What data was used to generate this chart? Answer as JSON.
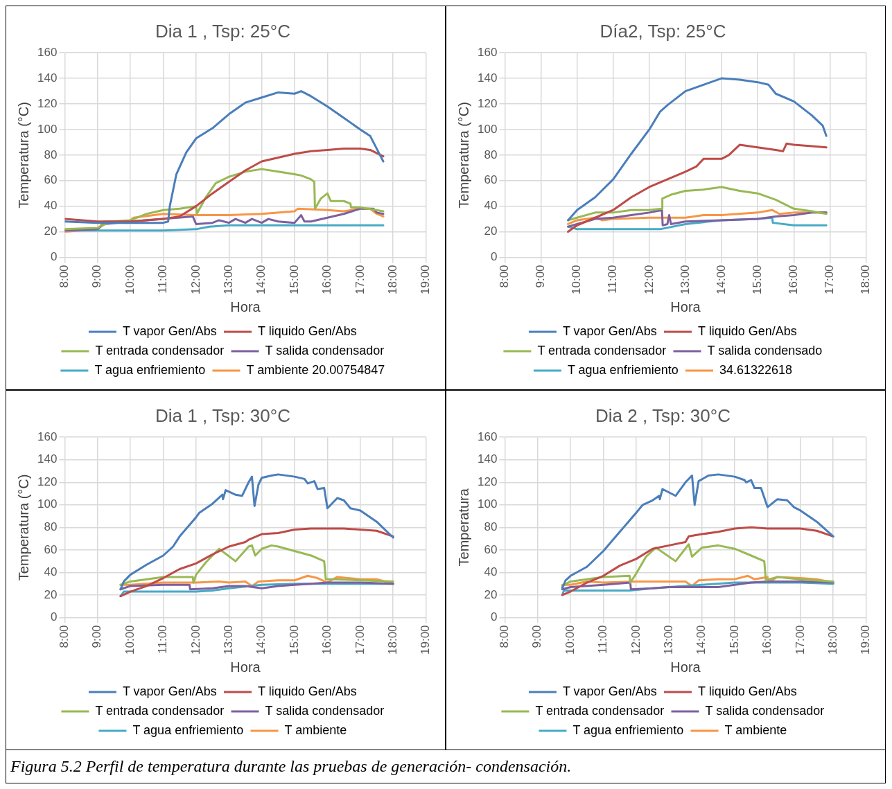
{
  "chart_data": [
    {
      "type": "line",
      "title": "Dia 1 , Tsp: 25°C",
      "xlabel": "Hora",
      "ylabel": "Temperatura (°C)",
      "xlim": [
        8,
        19
      ],
      "xticks": [
        {
          "value": 8,
          "label": "8:00"
        },
        {
          "value": 9,
          "label": "9:00"
        },
        {
          "value": 10,
          "label": "10:00"
        },
        {
          "value": 11,
          "label": "11:00"
        },
        {
          "value": 12,
          "label": "12:00"
        },
        {
          "value": 13,
          "label": "13:00"
        },
        {
          "value": 14,
          "label": "14:00"
        },
        {
          "value": 15,
          "label": "15:00"
        },
        {
          "value": 16,
          "label": "16:00"
        },
        {
          "value": 17,
          "label": "17:00"
        },
        {
          "value": 18,
          "label": "18:00"
        },
        {
          "value": 19,
          "label": "19:00"
        }
      ],
      "ylim": [
        0,
        160
      ],
      "yticks": [
        0,
        20,
        40,
        60,
        80,
        100,
        120,
        140,
        160
      ],
      "grid": true,
      "legend": "bottom",
      "marker": "none",
      "line_style": "solid",
      "series": [
        {
          "name": "T vapor Gen/Abs",
          "color": "#4a7ebb",
          "x": [
            8,
            9,
            10,
            11,
            11.15,
            11.2,
            11.4,
            11.7,
            12,
            12.5,
            13,
            13.5,
            14,
            14.5,
            15,
            15.2,
            15.5,
            16,
            16.5,
            17,
            17.3,
            17.5,
            17.7
          ],
          "values": [
            28,
            27,
            27,
            27,
            28,
            40,
            65,
            82,
            93,
            101,
            112,
            121,
            125,
            129,
            128,
            130,
            126,
            118,
            109,
            100,
            95,
            85,
            75
          ]
        },
        {
          "name": "T liquido Gen/Abs",
          "color": "#be4b48",
          "x": [
            8,
            9,
            10,
            11,
            11.5,
            12,
            12.5,
            13,
            13.5,
            14,
            14.5,
            15,
            15.5,
            16,
            16.5,
            17,
            17.3,
            17.7
          ],
          "values": [
            30,
            28,
            28,
            30,
            32,
            40,
            50,
            59,
            68,
            75,
            78,
            81,
            83,
            84,
            85,
            85,
            84,
            79
          ]
        },
        {
          "name": "T entrada condensador",
          "color": "#98b954",
          "x": [
            8,
            9,
            9.4,
            10,
            10.5,
            11,
            11.5,
            12,
            12.02,
            12.3,
            12.6,
            13,
            13.5,
            14,
            14.5,
            15,
            15.2,
            15.5,
            15.6,
            15.62,
            15.8,
            16,
            16.1,
            16.5,
            16.7,
            16.72,
            17,
            17.7
          ],
          "values": [
            22,
            23,
            28,
            29,
            34,
            37,
            38,
            40,
            34,
            47,
            58,
            63,
            67,
            69,
            67,
            65,
            64,
            61,
            59,
            38,
            46,
            50,
            44,
            44,
            42,
            39,
            39,
            36
          ]
        },
        {
          "name": "T salida condensador",
          "color": "#7d60a0",
          "x": [
            8,
            9,
            9.2,
            10,
            11,
            11.9,
            12,
            12.5,
            12.7,
            13,
            13.2,
            13.5,
            13.7,
            14,
            14.2,
            14.5,
            15,
            15.2,
            15.3,
            15.5,
            16,
            16.5,
            17,
            17.4,
            17.5,
            17.7
          ],
          "values": [
            21,
            22,
            26,
            28,
            30,
            32,
            26,
            27,
            29,
            27,
            30,
            27,
            30,
            27,
            30,
            28,
            27,
            33,
            28,
            28,
            31,
            34,
            38,
            38,
            35,
            34
          ]
        },
        {
          "name": "T agua enfriemiento",
          "color": "#46aac5",
          "x": [
            8,
            9,
            10,
            11,
            12,
            12.4,
            13,
            14,
            15,
            16,
            17,
            17.7
          ],
          "values": [
            21,
            21,
            21,
            21,
            22,
            24,
            25,
            25,
            25,
            25,
            25,
            25
          ]
        },
        {
          "name": "T ambiente 20.00754847",
          "color": "#f79646",
          "x": [
            8,
            9,
            9.2,
            9.5,
            9.9,
            10.1,
            11,
            12,
            13,
            14,
            15,
            15.1,
            16,
            16.5,
            17,
            17.3,
            17.5,
            17.7
          ],
          "values": [
            20,
            22,
            28,
            28,
            27,
            31,
            34,
            33,
            33,
            34,
            36,
            38,
            37,
            36,
            38,
            38,
            34,
            32
          ]
        }
      ]
    },
    {
      "type": "line",
      "title": "Día2, Tsp: 25°C",
      "xlabel": "Hora",
      "ylabel": "Temperatura (°C)",
      "xlim": [
        8,
        18
      ],
      "xticks": [
        {
          "value": 8,
          "label": "8:00"
        },
        {
          "value": 9,
          "label": "9:00"
        },
        {
          "value": 10,
          "label": "10:00"
        },
        {
          "value": 11,
          "label": "11:00"
        },
        {
          "value": 12,
          "label": "12:00"
        },
        {
          "value": 13,
          "label": "13:00"
        },
        {
          "value": 14,
          "label": "14:00"
        },
        {
          "value": 15,
          "label": "15:00"
        },
        {
          "value": 16,
          "label": "16:00"
        },
        {
          "value": 17,
          "label": "17:00"
        },
        {
          "value": 18,
          "label": "18:00"
        }
      ],
      "ylim": [
        0,
        160
      ],
      "yticks": [
        0,
        20,
        40,
        60,
        80,
        100,
        120,
        140,
        160
      ],
      "grid": true,
      "legend": "bottom",
      "marker": "none",
      "line_style": "solid",
      "series": [
        {
          "name": "T vapor Gen/Abs",
          "color": "#4a7ebb",
          "x": [
            9.75,
            10,
            10.5,
            11,
            11.5,
            12,
            12.3,
            12.5,
            13,
            13.5,
            14,
            14.5,
            15,
            15.3,
            15.5,
            16,
            16.5,
            16.8,
            16.9
          ],
          "values": [
            29,
            37,
            47,
            61,
            81,
            100,
            114,
            119,
            130,
            135,
            140,
            139,
            137,
            135,
            128,
            122,
            111,
            103,
            95
          ]
        },
        {
          "name": "T liquido Gen/Abs",
          "color": "#be4b48",
          "x": [
            9.75,
            10,
            10.5,
            11,
            11.5,
            12,
            12.5,
            13,
            13.3,
            13.5,
            14,
            14.2,
            14.5,
            15,
            15.5,
            15.7,
            15.8,
            16,
            16.5,
            16.9
          ],
          "values": [
            20,
            25,
            31,
            37,
            47,
            55,
            61,
            67,
            71,
            77,
            77,
            80,
            88,
            86,
            84,
            83,
            89,
            88,
            87,
            86
          ]
        },
        {
          "name": "T entrada condensador",
          "color": "#98b954",
          "x": [
            9.75,
            10,
            10.5,
            11,
            11.5,
            12,
            12.35,
            12.36,
            12.6,
            13,
            13.5,
            14,
            14.5,
            15,
            15.5,
            16,
            16.5,
            16.9
          ],
          "values": [
            29,
            31,
            35,
            35,
            37,
            37,
            38,
            46,
            49,
            52,
            53,
            55,
            52,
            50,
            45,
            38,
            36,
            34
          ]
        },
        {
          "name": "T salida condensado",
          "color": "#7d60a0",
          "x": [
            9.75,
            10,
            10.5,
            11,
            11.5,
            12,
            12.35,
            12.37,
            12.5,
            12.55,
            12.6,
            13,
            14,
            15,
            15.5,
            16,
            16.5,
            16.9
          ],
          "values": [
            24,
            26,
            30,
            31,
            33,
            35,
            37,
            25,
            26,
            33,
            26,
            28,
            29,
            30,
            32,
            33,
            35,
            35
          ]
        },
        {
          "name": "T agua enfriemiento",
          "color": "#46aac5",
          "x": [
            9.75,
            10,
            12.3,
            13,
            14,
            15,
            15.4,
            15.42,
            16,
            16.9
          ],
          "values": [
            24,
            22,
            22,
            26,
            29,
            30,
            31,
            27,
            25,
            25
          ]
        },
        {
          "name": "34.61322618",
          "color": "#f79646",
          "x": [
            9.75,
            10,
            10.5,
            10.7,
            11,
            12,
            13,
            13.5,
            14,
            15,
            15.4,
            15.6,
            16,
            16.9
          ],
          "values": [
            26,
            29,
            31,
            29,
            30,
            31,
            31,
            33,
            33,
            35,
            37,
            34,
            35,
            35
          ]
        }
      ]
    },
    {
      "type": "line",
      "title": "Dia 1 , Tsp: 30°C",
      "xlabel": "Hora",
      "ylabel": "Temperatura (°C)",
      "xlim": [
        8,
        19
      ],
      "xticks": [
        {
          "value": 8,
          "label": "8:00"
        },
        {
          "value": 9,
          "label": "9:00"
        },
        {
          "value": 10,
          "label": "10:00"
        },
        {
          "value": 11,
          "label": "11:00"
        },
        {
          "value": 12,
          "label": "12:00"
        },
        {
          "value": 13,
          "label": "13:00"
        },
        {
          "value": 14,
          "label": "14:00"
        },
        {
          "value": 15,
          "label": "15:00"
        },
        {
          "value": 16,
          "label": "16:00"
        },
        {
          "value": 17,
          "label": "17:00"
        },
        {
          "value": 18,
          "label": "18:00"
        },
        {
          "value": 19,
          "label": "19:00"
        }
      ],
      "ylim": [
        0,
        160
      ],
      "yticks": [
        0,
        20,
        40,
        60,
        80,
        100,
        120,
        140,
        160
      ],
      "grid": true,
      "legend": "bottom",
      "marker": "none",
      "line_style": "solid",
      "series": [
        {
          "name": "T vapor Gen/Abs",
          "color": "#4a7ebb",
          "x": [
            9.7,
            9.8,
            10,
            10.5,
            11,
            11.3,
            11.5,
            12,
            12.1,
            12.5,
            12.8,
            12.82,
            12.9,
            13.2,
            13.4,
            13.6,
            13.7,
            13.78,
            13.9,
            14,
            14.3,
            14.5,
            15,
            15.3,
            15.4,
            15.6,
            15.7,
            15.9,
            16,
            16.3,
            16.5,
            16.7,
            17,
            17.5,
            18
          ],
          "values": [
            25,
            32,
            38,
            47,
            55,
            63,
            72,
            89,
            93,
            101,
            109,
            105,
            113,
            109,
            108,
            120,
            125,
            99,
            118,
            124,
            126,
            127,
            125,
            123,
            119,
            121,
            114,
            115,
            97,
            106,
            104,
            97,
            95,
            85,
            71
          ]
        },
        {
          "name": "T liquido Gen/Abs",
          "color": "#be4b48",
          "x": [
            9.7,
            10,
            10.5,
            11,
            11.5,
            12,
            12.5,
            13,
            13.5,
            13.6,
            14,
            14.5,
            15,
            15.5,
            16,
            16.5,
            17,
            17.5,
            18
          ],
          "values": [
            19,
            23,
            28,
            35,
            43,
            48,
            56,
            63,
            67,
            69,
            74,
            75,
            78,
            79,
            79,
            79,
            78,
            77,
            72
          ]
        },
        {
          "name": "T entrada condensador",
          "color": "#98b954",
          "x": [
            9.7,
            10,
            10.5,
            11,
            11.5,
            11.9,
            11.92,
            12,
            12.3,
            12.7,
            13.2,
            13.6,
            13.7,
            13.8,
            14,
            14.3,
            14.5,
            15,
            15.5,
            15.9,
            15.95,
            16.2,
            17,
            18
          ],
          "values": [
            29,
            32,
            34,
            36,
            36,
            36,
            31,
            38,
            49,
            61,
            50,
            63,
            64,
            55,
            61,
            64,
            63,
            59,
            55,
            50,
            34,
            34,
            33,
            32
          ]
        },
        {
          "name": "T salida condensador",
          "color": "#7d60a0",
          "x": [
            9.7,
            10,
            11,
            11.8,
            11.82,
            12.5,
            13,
            13.5,
            14,
            14.5,
            15,
            15.5,
            16,
            17,
            18
          ],
          "values": [
            25,
            28,
            29,
            29,
            25,
            26,
            28,
            28,
            26,
            28,
            29,
            30,
            31,
            31,
            30
          ]
        },
        {
          "name": "T agua enfriemiento",
          "color": "#46aac5",
          "x": [
            9.7,
            9.8,
            10,
            11,
            12,
            12.5,
            13,
            14,
            15,
            16,
            17,
            18
          ],
          "values": [
            19,
            23,
            23,
            23,
            23,
            24,
            26,
            29,
            30,
            30,
            30,
            30
          ]
        },
        {
          "name": "T ambiente",
          "color": "#f79646",
          "x": [
            9.7,
            10,
            11,
            12,
            12.7,
            13,
            13.5,
            13.7,
            13.9,
            14.5,
            15,
            15.4,
            15.7,
            16,
            16.3,
            17,
            17.5,
            18
          ],
          "values": [
            29,
            29,
            31,
            31,
            32,
            31,
            32,
            28,
            32,
            33,
            33,
            37,
            35,
            31,
            36,
            34,
            34,
            30
          ]
        }
      ]
    },
    {
      "type": "line",
      "title": "Dia 2 , Tsp: 30°C",
      "xlabel": "Hora",
      "ylabel": "Temperatura",
      "xlim": [
        8,
        19
      ],
      "xticks": [
        {
          "value": 8,
          "label": "8:00"
        },
        {
          "value": 9,
          "label": "9:00"
        },
        {
          "value": 10,
          "label": "10:00"
        },
        {
          "value": 11,
          "label": "11:00"
        },
        {
          "value": 12,
          "label": "12:00"
        },
        {
          "value": 13,
          "label": "13:00"
        },
        {
          "value": 14,
          "label": "14:00"
        },
        {
          "value": 15,
          "label": "15:00"
        },
        {
          "value": 16,
          "label": "16:00"
        },
        {
          "value": 17,
          "label": "17:00"
        },
        {
          "value": 18,
          "label": "18:00"
        },
        {
          "value": 19,
          "label": "19:00"
        }
      ],
      "ylim": [
        0,
        160
      ],
      "yticks": [
        0,
        20,
        40,
        60,
        80,
        100,
        120,
        140,
        160
      ],
      "grid": true,
      "legend": "bottom",
      "marker": "none",
      "line_style": "solid",
      "annotations": [
        "Figura 5.2 Perfil de temperatura durante las pruebas de generación- condensación."
      ],
      "series": [
        {
          "name": "T vapor Gen/Abs",
          "color": "#4a7ebb",
          "x": [
            9.75,
            9.85,
            10,
            10.5,
            11,
            11.5,
            12,
            12.2,
            12.5,
            12.7,
            12.72,
            12.8,
            13.2,
            13.5,
            13.7,
            13.78,
            13.9,
            14.2,
            14.5,
            15,
            15.3,
            15.35,
            15.5,
            15.6,
            15.8,
            16,
            16.3,
            16.6,
            16.8,
            17,
            17.5,
            18
          ],
          "values": [
            26,
            33,
            37,
            45,
            59,
            76,
            93,
            100,
            104,
            108,
            105,
            114,
            108,
            120,
            126,
            100,
            121,
            126,
            127,
            125,
            122,
            120,
            122,
            115,
            115,
            98,
            105,
            104,
            98,
            95,
            85,
            72
          ]
        },
        {
          "name": "T liquido Gen/Abs",
          "color": "#be4b48",
          "x": [
            9.75,
            10,
            10.5,
            11,
            11.5,
            12,
            12.5,
            13,
            13.5,
            13.6,
            14,
            14.5,
            15,
            15.5,
            16,
            16.5,
            17,
            17.5,
            18
          ],
          "values": [
            20,
            23,
            31,
            37,
            46,
            52,
            61,
            64,
            67,
            72,
            74,
            76,
            79,
            80,
            79,
            79,
            79,
            77,
            72
          ]
        },
        {
          "name": "T entrada condensador",
          "color": "#98b954",
          "x": [
            9.75,
            10,
            10.5,
            11,
            11.8,
            11.82,
            12,
            12.3,
            12.6,
            13.2,
            13.6,
            13.7,
            14,
            14.5,
            15,
            15.5,
            15.9,
            15.95,
            16.3,
            17,
            18
          ],
          "values": [
            28,
            32,
            34,
            36,
            37,
            31,
            39,
            54,
            62,
            50,
            65,
            54,
            62,
            64,
            61,
            55,
            50,
            33,
            36,
            34,
            32
          ]
        },
        {
          "name": "T salida condensador",
          "color": "#7d60a0",
          "x": [
            9.75,
            10,
            11,
            11.82,
            11.84,
            12.5,
            13,
            13.5,
            14,
            14.5,
            15,
            15.5,
            16,
            17,
            18
          ],
          "values": [
            25,
            27,
            29,
            31,
            25,
            26,
            27,
            27,
            27,
            27,
            29,
            31,
            32,
            32,
            31
          ]
        },
        {
          "name": "T agua enfriemiento",
          "color": "#46aac5",
          "x": [
            9.75,
            9.8,
            11,
            11.8,
            12.5,
            13,
            14,
            15,
            16,
            17,
            18
          ],
          "values": [
            20,
            24,
            24,
            24,
            26,
            27,
            29,
            31,
            31,
            31,
            30
          ]
        },
        {
          "name": "T ambiente",
          "color": "#f79646",
          "x": [
            9.75,
            10,
            10.5,
            11,
            12,
            12.9,
            13.5,
            13.7,
            13.9,
            14.5,
            15,
            15.4,
            15.6,
            16,
            16.02,
            16.3,
            17,
            17.5,
            18
          ],
          "values": [
            29,
            29,
            32,
            31,
            32,
            32,
            32,
            28,
            33,
            34,
            34,
            37,
            34,
            36,
            31,
            36,
            35,
            34,
            31
          ]
        }
      ]
    }
  ]
}
